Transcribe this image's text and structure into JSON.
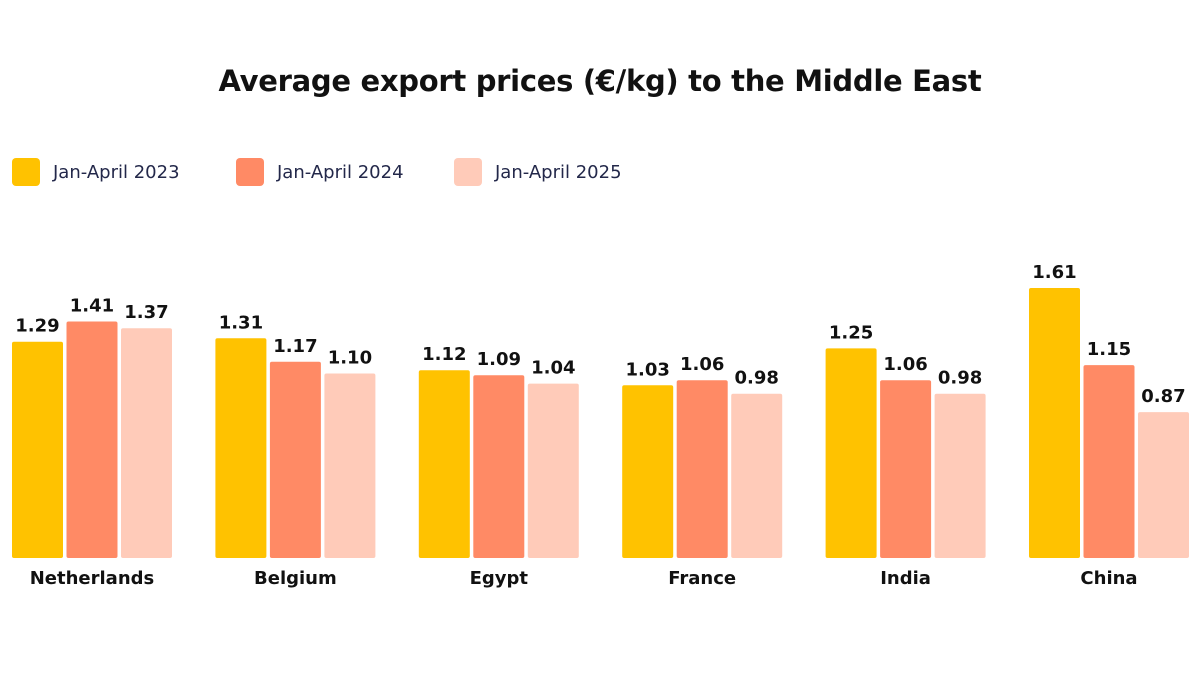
{
  "chart_data": {
    "type": "bar",
    "title": "Average export prices (€/kg) to the Middle East",
    "categories": [
      "Netherlands",
      "Belgium",
      "Egypt",
      "France",
      "India",
      "China"
    ],
    "series": [
      {
        "name": "Jan-April 2023",
        "color": "#FFC200",
        "values": [
          1.29,
          1.31,
          1.12,
          1.03,
          1.25,
          1.61
        ]
      },
      {
        "name": "Jan-April 2024",
        "color": "#FF8A65",
        "values": [
          1.41,
          1.17,
          1.09,
          1.06,
          1.06,
          1.15
        ]
      },
      {
        "name": "Jan-April 2025",
        "color": "#FFCBB9",
        "values": [
          1.37,
          1.1,
          1.04,
          0.98,
          0.98,
          0.87
        ]
      }
    ],
    "value_labels": [
      [
        "1.29",
        "1.31",
        "1.12",
        "1.03",
        "1.25",
        "1.61"
      ],
      [
        "1.41",
        "1.17",
        "1.09",
        "1.06",
        "1.06",
        "1.15"
      ],
      [
        "1.37",
        "1.10",
        "1.04",
        "0.98",
        "0.98",
        "0.87"
      ]
    ],
    "xlabel": "",
    "ylabel": "",
    "ylim": [
      0,
      1.61
    ],
    "grid": false,
    "legend_position": "top-left"
  }
}
